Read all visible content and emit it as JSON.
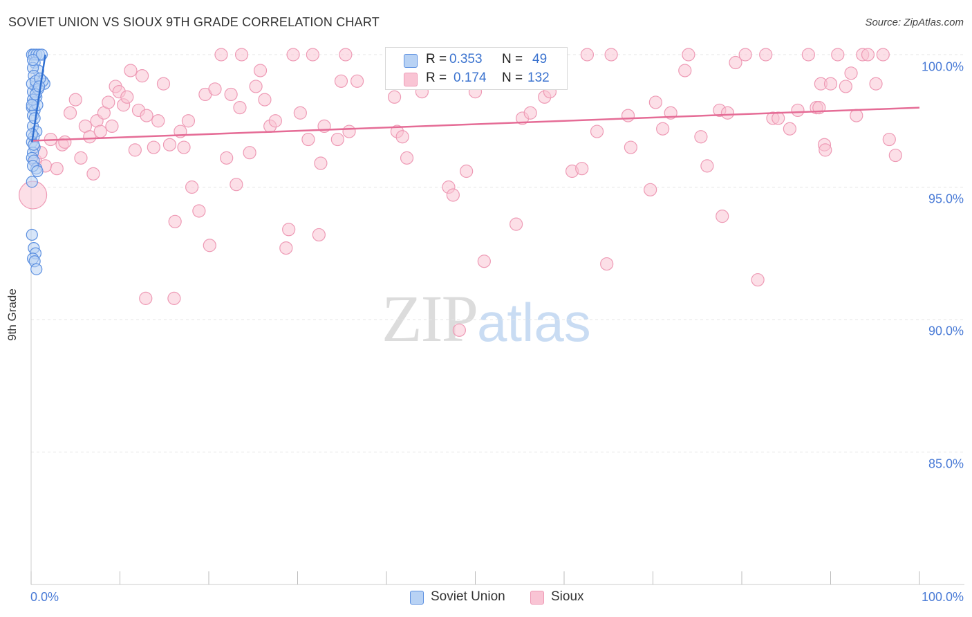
{
  "title": "SOVIET UNION VS SIOUX 9TH GRADE CORRELATION CHART",
  "source": "Source: ZipAtlas.com",
  "watermark": {
    "part1": "ZIP",
    "part2": "atlas"
  },
  "colors": {
    "soviet_fill": "#b8d2f4",
    "soviet_stroke": "#5b8fe0",
    "soviet_line": "#2f6fd1",
    "sioux_fill": "#f9c4d4",
    "sioux_stroke": "#ee9ab5",
    "sioux_line": "#e56c96",
    "tick_label": "#4a7bd6",
    "grid": "#e4e4e4"
  },
  "stats": {
    "rows": [
      {
        "series": "Soviet Union",
        "r_label": "R =",
        "r_value": "0.353",
        "n_label": "N =",
        "n_value": "49"
      },
      {
        "series": "Sioux",
        "r_label": "R =",
        "r_value": "0.174",
        "n_label": "N =",
        "n_value": "132"
      }
    ]
  },
  "legend": [
    "Soviet Union",
    "Sioux"
  ],
  "chart_data": {
    "type": "scatter",
    "title": "SOVIET UNION VS SIOUX 9TH GRADE CORRELATION CHART",
    "xlabel": "",
    "ylabel": "9th Grade",
    "xlim": [
      0,
      100
    ],
    "ylim": [
      80.5,
      100.5
    ],
    "x_tick_labels": [
      "0.0%",
      "100.0%"
    ],
    "y_ticks": [
      85,
      90,
      95,
      100
    ],
    "y_tick_labels": [
      "85.0%",
      "90.0%",
      "95.0%",
      "100.0%"
    ],
    "grid": true,
    "series": [
      {
        "name": "Soviet Union",
        "r": 0.353,
        "n": 49,
        "trend": {
          "x": [
            0.1,
            1.6
          ],
          "y": [
            96.7,
            100.0
          ]
        },
        "points": [
          [
            0.1,
            100.0
          ],
          [
            0.3,
            100.0
          ],
          [
            0.6,
            100.0
          ],
          [
            0.9,
            100.0
          ],
          [
            1.2,
            100.0
          ],
          [
            0.4,
            99.7
          ],
          [
            0.8,
            99.4
          ],
          [
            0.2,
            99.5
          ],
          [
            1.5,
            98.9
          ],
          [
            1.3,
            99.0
          ],
          [
            0.5,
            98.8
          ],
          [
            0.2,
            98.6
          ],
          [
            0.6,
            98.4
          ],
          [
            0.3,
            98.2
          ],
          [
            0.1,
            98.0
          ],
          [
            0.4,
            97.9
          ],
          [
            0.2,
            97.7
          ],
          [
            0.7,
            98.1
          ],
          [
            0.3,
            99.2
          ],
          [
            0.1,
            98.9
          ],
          [
            0.5,
            99.0
          ],
          [
            0.2,
            97.3
          ],
          [
            0.6,
            97.1
          ],
          [
            0.3,
            96.9
          ],
          [
            0.1,
            96.7
          ],
          [
            0.4,
            96.5
          ],
          [
            0.2,
            96.3
          ],
          [
            0.1,
            96.1
          ],
          [
            0.3,
            96.0
          ],
          [
            0.6,
            95.7
          ],
          [
            0.2,
            95.8
          ],
          [
            0.7,
            95.6
          ],
          [
            0.1,
            95.2
          ],
          [
            0.1,
            93.2
          ],
          [
            0.3,
            92.7
          ],
          [
            0.5,
            92.5
          ],
          [
            0.2,
            92.3
          ],
          [
            0.4,
            92.2
          ],
          [
            0.6,
            91.9
          ],
          [
            0.2,
            98.3
          ],
          [
            0.8,
            98.7
          ],
          [
            0.4,
            97.6
          ],
          [
            0.1,
            97.0
          ],
          [
            0.3,
            96.6
          ],
          [
            1.0,
            99.1
          ],
          [
            0.2,
            99.8
          ],
          [
            0.5,
            98.5
          ],
          [
            0.9,
            98.8
          ],
          [
            0.1,
            98.1
          ]
        ]
      },
      {
        "name": "Sioux",
        "r": 0.174,
        "n": 132,
        "trend": {
          "x": [
            0.0,
            100.0
          ],
          "y": [
            96.75,
            98.0
          ]
        },
        "points": [
          [
            0.2,
            94.7
          ],
          [
            0.5,
            96.0
          ],
          [
            1.1,
            96.3
          ],
          [
            2.2,
            96.8
          ],
          [
            3.5,
            96.6
          ],
          [
            1.6,
            95.8
          ],
          [
            2.9,
            95.7
          ],
          [
            3.8,
            96.7
          ],
          [
            4.4,
            97.8
          ],
          [
            5.0,
            98.3
          ],
          [
            5.6,
            96.1
          ],
          [
            6.1,
            97.3
          ],
          [
            6.6,
            96.9
          ],
          [
            7.0,
            95.5
          ],
          [
            7.4,
            97.5
          ],
          [
            7.8,
            97.1
          ],
          [
            8.2,
            97.8
          ],
          [
            8.7,
            98.2
          ],
          [
            9.1,
            97.3
          ],
          [
            9.5,
            98.8
          ],
          [
            9.9,
            98.6
          ],
          [
            10.4,
            98.1
          ],
          [
            10.8,
            98.4
          ],
          [
            11.2,
            99.4
          ],
          [
            11.7,
            96.4
          ],
          [
            12.1,
            97.9
          ],
          [
            12.5,
            99.2
          ],
          [
            13.0,
            97.7
          ],
          [
            13.8,
            96.5
          ],
          [
            14.3,
            97.5
          ],
          [
            14.9,
            98.9
          ],
          [
            15.6,
            96.6
          ],
          [
            16.2,
            93.7
          ],
          [
            16.8,
            97.1
          ],
          [
            17.2,
            96.5
          ],
          [
            17.7,
            97.5
          ],
          [
            18.1,
            95.0
          ],
          [
            18.9,
            94.1
          ],
          [
            19.6,
            98.5
          ],
          [
            20.1,
            92.8
          ],
          [
            20.7,
            98.7
          ],
          [
            21.4,
            100.0
          ],
          [
            22.0,
            96.1
          ],
          [
            22.5,
            98.5
          ],
          [
            23.1,
            95.1
          ],
          [
            23.7,
            100.0
          ],
          [
            24.6,
            96.3
          ],
          [
            25.3,
            98.8
          ],
          [
            25.8,
            99.4
          ],
          [
            26.3,
            98.3
          ],
          [
            26.9,
            97.3
          ],
          [
            27.5,
            97.5
          ],
          [
            28.7,
            92.7
          ],
          [
            29.0,
            93.4
          ],
          [
            29.5,
            100.0
          ],
          [
            30.3,
            97.8
          ],
          [
            31.2,
            96.8
          ],
          [
            31.7,
            100.0
          ],
          [
            32.4,
            93.2
          ],
          [
            32.6,
            95.9
          ],
          [
            33.0,
            97.3
          ],
          [
            34.5,
            96.8
          ],
          [
            34.9,
            99.0
          ],
          [
            35.4,
            100.0
          ],
          [
            35.8,
            97.1
          ],
          [
            41.2,
            97.1
          ],
          [
            40.9,
            98.4
          ],
          [
            41.8,
            96.9
          ],
          [
            42.3,
            96.1
          ],
          [
            47.0,
            95.0
          ],
          [
            47.5,
            94.7
          ],
          [
            47.9,
            99.0
          ],
          [
            49.0,
            95.6
          ],
          [
            50.0,
            98.6
          ],
          [
            51.0,
            92.2
          ],
          [
            52.6,
            100.0
          ],
          [
            54.6,
            93.6
          ],
          [
            55.3,
            97.6
          ],
          [
            56.2,
            97.8
          ],
          [
            57.8,
            98.4
          ],
          [
            58.4,
            98.6
          ],
          [
            59.1,
            100.0
          ],
          [
            60.9,
            95.6
          ],
          [
            62.0,
            95.7
          ],
          [
            62.6,
            100.0
          ],
          [
            64.8,
            92.1
          ],
          [
            65.3,
            100.0
          ],
          [
            67.2,
            97.7
          ],
          [
            67.5,
            96.5
          ],
          [
            69.7,
            94.9
          ],
          [
            70.3,
            98.2
          ],
          [
            71.1,
            97.2
          ],
          [
            72.0,
            97.8
          ],
          [
            73.6,
            99.4
          ],
          [
            74.0,
            100.0
          ],
          [
            75.4,
            96.9
          ],
          [
            76.1,
            95.8
          ],
          [
            77.5,
            97.9
          ],
          [
            77.8,
            93.9
          ],
          [
            78.4,
            97.8
          ],
          [
            80.4,
            100.0
          ],
          [
            81.8,
            91.5
          ],
          [
            82.7,
            100.0
          ],
          [
            83.5,
            97.6
          ],
          [
            84.1,
            97.6
          ],
          [
            85.4,
            97.2
          ],
          [
            86.3,
            97.9
          ],
          [
            87.5,
            100.0
          ],
          [
            88.4,
            98.0
          ],
          [
            88.7,
            98.0
          ],
          [
            88.9,
            98.9
          ],
          [
            89.3,
            96.6
          ],
          [
            89.4,
            96.4
          ],
          [
            90.0,
            98.9
          ],
          [
            90.8,
            100.0
          ],
          [
            91.7,
            98.8
          ],
          [
            92.3,
            99.3
          ],
          [
            92.9,
            97.7
          ],
          [
            93.6,
            100.0
          ],
          [
            94.2,
            100.0
          ],
          [
            95.1,
            98.9
          ],
          [
            95.9,
            100.0
          ],
          [
            96.6,
            96.8
          ],
          [
            97.3,
            96.2
          ],
          [
            23.5,
            98.0
          ],
          [
            44.0,
            98.6
          ],
          [
            36.7,
            99.0
          ],
          [
            12.9,
            90.8
          ],
          [
            16.1,
            90.8
          ],
          [
            48.2,
            89.6
          ],
          [
            63.7,
            97.1
          ],
          [
            79.3,
            99.7
          ]
        ]
      }
    ]
  }
}
